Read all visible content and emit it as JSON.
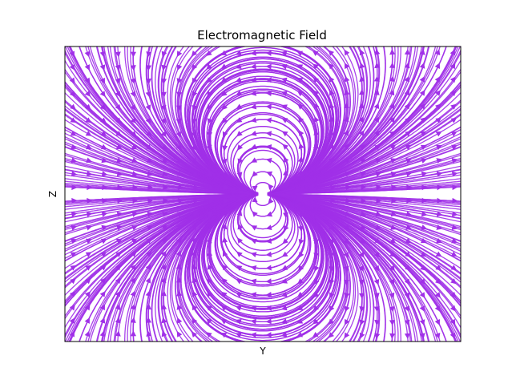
{
  "chart_data": {
    "type": "streamplot",
    "title": "Electromagnetic Field",
    "xlabel": "Y",
    "ylabel": "Z",
    "xlim": [
      -3,
      3
    ],
    "ylim": [
      -3,
      3
    ],
    "ticks_visible": false,
    "grid": false,
    "stream_color": "#a030e8",
    "field": {
      "description_source": "dipole-like streamlines centered at origin",
      "sources": [
        {
          "kind": "dipole",
          "x": 0.0,
          "y": 0.0
        }
      ]
    }
  }
}
